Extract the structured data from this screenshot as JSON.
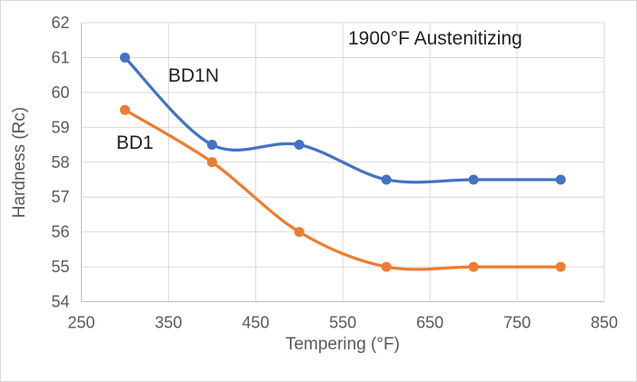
{
  "chart_data": {
    "type": "line",
    "title": "1900°F Austenitizing",
    "xlabel": "Tempering (°F)",
    "ylabel": "Hardness (Rc)",
    "x": [
      300,
      400,
      500,
      600,
      700,
      800
    ],
    "series": [
      {
        "name": "BD1N",
        "color": "#4472C4",
        "values": [
          61,
          58.5,
          58.5,
          57.5,
          57.5,
          57.5
        ]
      },
      {
        "name": "BD1",
        "color": "#ED7D31",
        "values": [
          59.5,
          58,
          56,
          55,
          55,
          55
        ]
      }
    ],
    "xlim": [
      250,
      850
    ],
    "ylim": [
      54,
      62
    ],
    "x_ticks": [
      250,
      350,
      450,
      550,
      650,
      750,
      850
    ],
    "y_ticks": [
      54,
      55,
      56,
      57,
      58,
      59,
      60,
      61,
      62
    ],
    "grid": true,
    "smooth": true,
    "legend_position": "none",
    "marker": "circle"
  },
  "colors": {
    "axis_line": "#BFBFBF",
    "gridline": "#D9D9D9",
    "tick_text": "#595959",
    "annotation_text": "#1f1f1f",
    "background": "#FFFFFF",
    "border": "#D9D9D9"
  }
}
